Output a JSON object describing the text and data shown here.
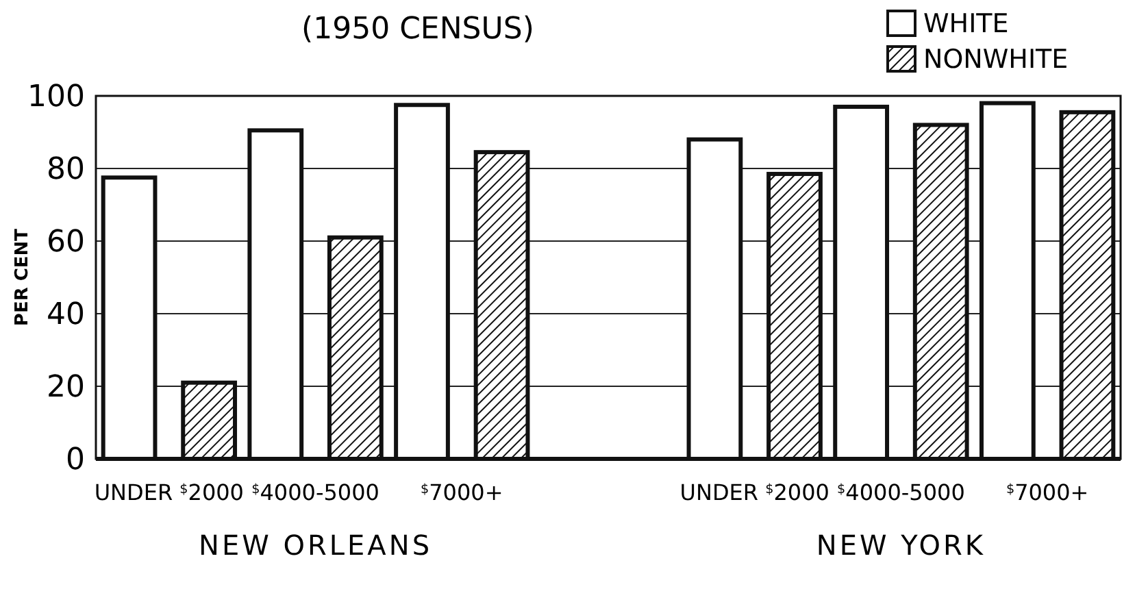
{
  "chart_data": {
    "type": "bar",
    "title": "(1950 CENSUS)",
    "ylabel": "PER CENT",
    "categories": [
      "UNDER $^{$}$2000",
      "$^{$}$4000-5000",
      "$^{$}$7000+",
      null,
      "UNDER $^{$}$2000",
      "$^{$}$4000-5000",
      "$^{$}$7000+"
    ],
    "series": [
      {
        "name": "WHITE",
        "color": "#ffffff",
        "values": [
          77.5,
          90.5,
          97.5,
          null,
          88,
          97,
          98
        ]
      },
      {
        "name": "NONWHITE",
        "color": "#111111",
        "values": [
          21,
          61,
          84.5,
          null,
          78.5,
          92,
          95.5
        ]
      }
    ],
    "annotations": [
      "NEW ORLEANS",
      "NEW YORK"
    ],
    "ylim": [
      0,
      100
    ],
    "yticks": [
      0,
      20,
      40,
      60,
      80,
      100
    ],
    "grid": "y",
    "legend": "top right"
  }
}
